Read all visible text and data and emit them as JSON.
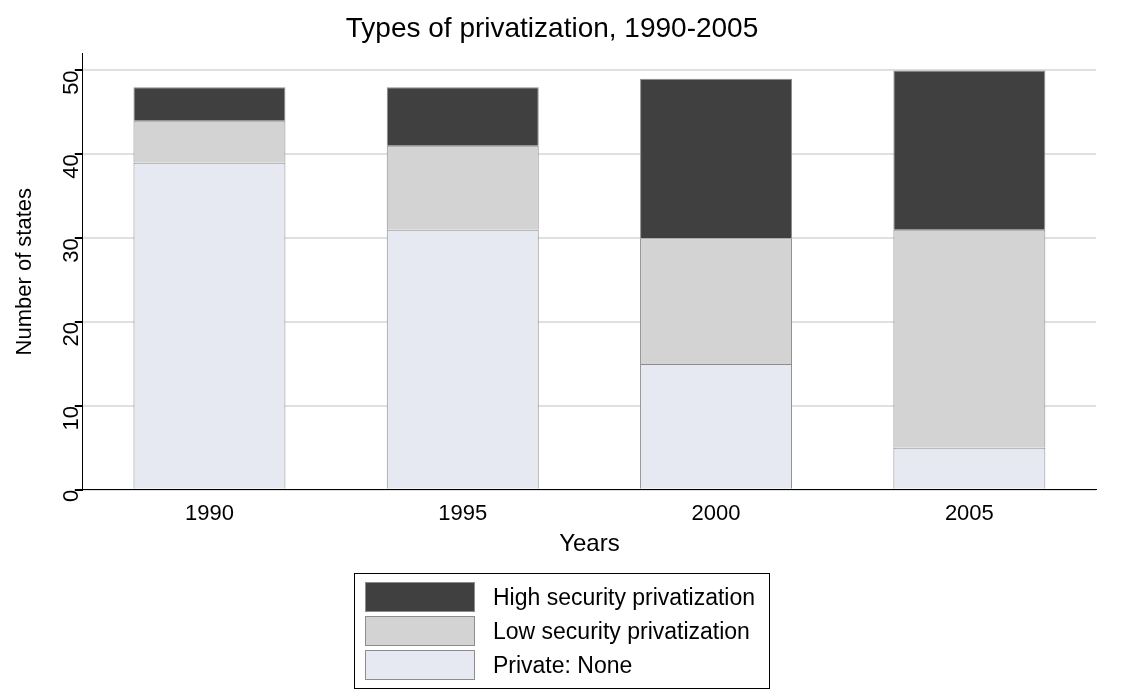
{
  "chart_data": {
    "type": "bar",
    "title": "Types of privatization, 1990-2005",
    "xlabel": "Years",
    "ylabel": "Number of states",
    "categories": [
      "1990",
      "1995",
      "2000",
      "2005"
    ],
    "stacked": true,
    "series": [
      {
        "name": "Private: None",
        "color": "#e6e9f2",
        "values": [
          39,
          31,
          15,
          5
        ]
      },
      {
        "name": "Low security privatization",
        "color": "#d3d3d3",
        "values": [
          5,
          10,
          15,
          26
        ]
      },
      {
        "name": "High security privatization",
        "color": "#404040",
        "values": [
          4,
          7,
          19,
          19
        ]
      }
    ],
    "ylim": [
      0,
      52
    ],
    "yticks": [
      0,
      10,
      20,
      30,
      40,
      50
    ],
    "grid": "y",
    "legend": "bottom"
  }
}
